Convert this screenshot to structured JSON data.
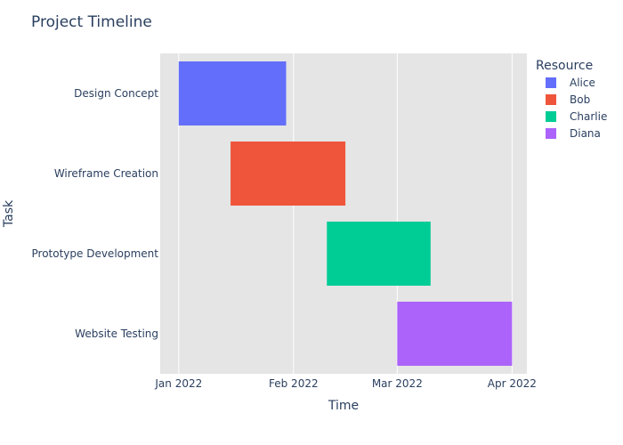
{
  "chart_data": {
    "type": "gantt",
    "title": "Project Timeline",
    "xlabel": "Time",
    "ylabel": "Task",
    "x_ticks": [
      "Jan 2022",
      "Feb 2022",
      "Mar 2022",
      "Apr 2022"
    ],
    "x_range": [
      "2021-12-27",
      "2022-04-05"
    ],
    "legend": {
      "title": "Resource",
      "placement": "top-right",
      "items": [
        {
          "name": "Alice",
          "color": "#636efa"
        },
        {
          "name": "Bob",
          "color": "#ef553b"
        },
        {
          "name": "Charlie",
          "color": "#00cc96"
        },
        {
          "name": "Diana",
          "color": "#ab63fa"
        }
      ]
    },
    "tasks": [
      {
        "task": "Design Concept",
        "start": "2022-01-01",
        "end": "2022-01-30",
        "resource": "Alice"
      },
      {
        "task": "Wireframe Creation",
        "start": "2022-01-15",
        "end": "2022-02-15",
        "resource": "Bob"
      },
      {
        "task": "Prototype Development",
        "start": "2022-02-10",
        "end": "2022-03-10",
        "resource": "Charlie"
      },
      {
        "task": "Website Testing",
        "start": "2022-03-01",
        "end": "2022-04-01",
        "resource": "Diana"
      }
    ],
    "grid": true,
    "plot_background": "#e5e5e5"
  }
}
